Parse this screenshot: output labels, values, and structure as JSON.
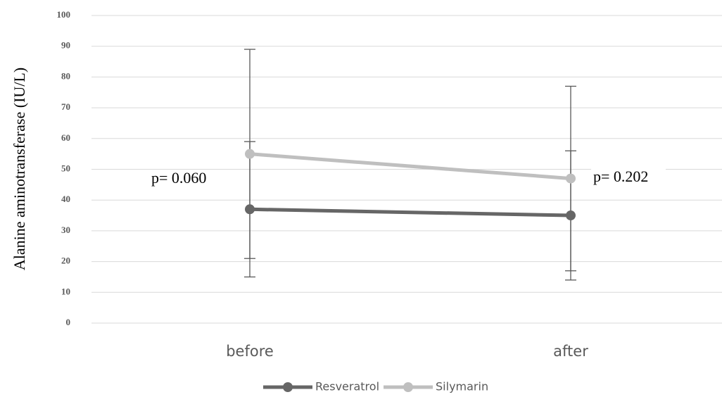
{
  "chart_data": {
    "type": "line",
    "y_label": "Alanine aminotransferase (IU/L)",
    "categories": [
      "before",
      "after"
    ],
    "series": [
      {
        "name": "Resveratrol",
        "color": "#666666",
        "values": [
          37,
          35
        ],
        "errors": [
          22,
          21
        ]
      },
      {
        "name": "Silymarin",
        "color": "#bfbfbf",
        "values": [
          55,
          47
        ],
        "errors": [
          34,
          30
        ]
      }
    ],
    "annotations": [
      "p= 0.060",
      "p= 0.202"
    ],
    "ylim": [
      0,
      100
    ],
    "yticks": [
      0,
      10,
      20,
      30,
      40,
      50,
      60,
      70,
      80,
      90,
      100
    ],
    "grid": true,
    "legend": "bottom"
  }
}
